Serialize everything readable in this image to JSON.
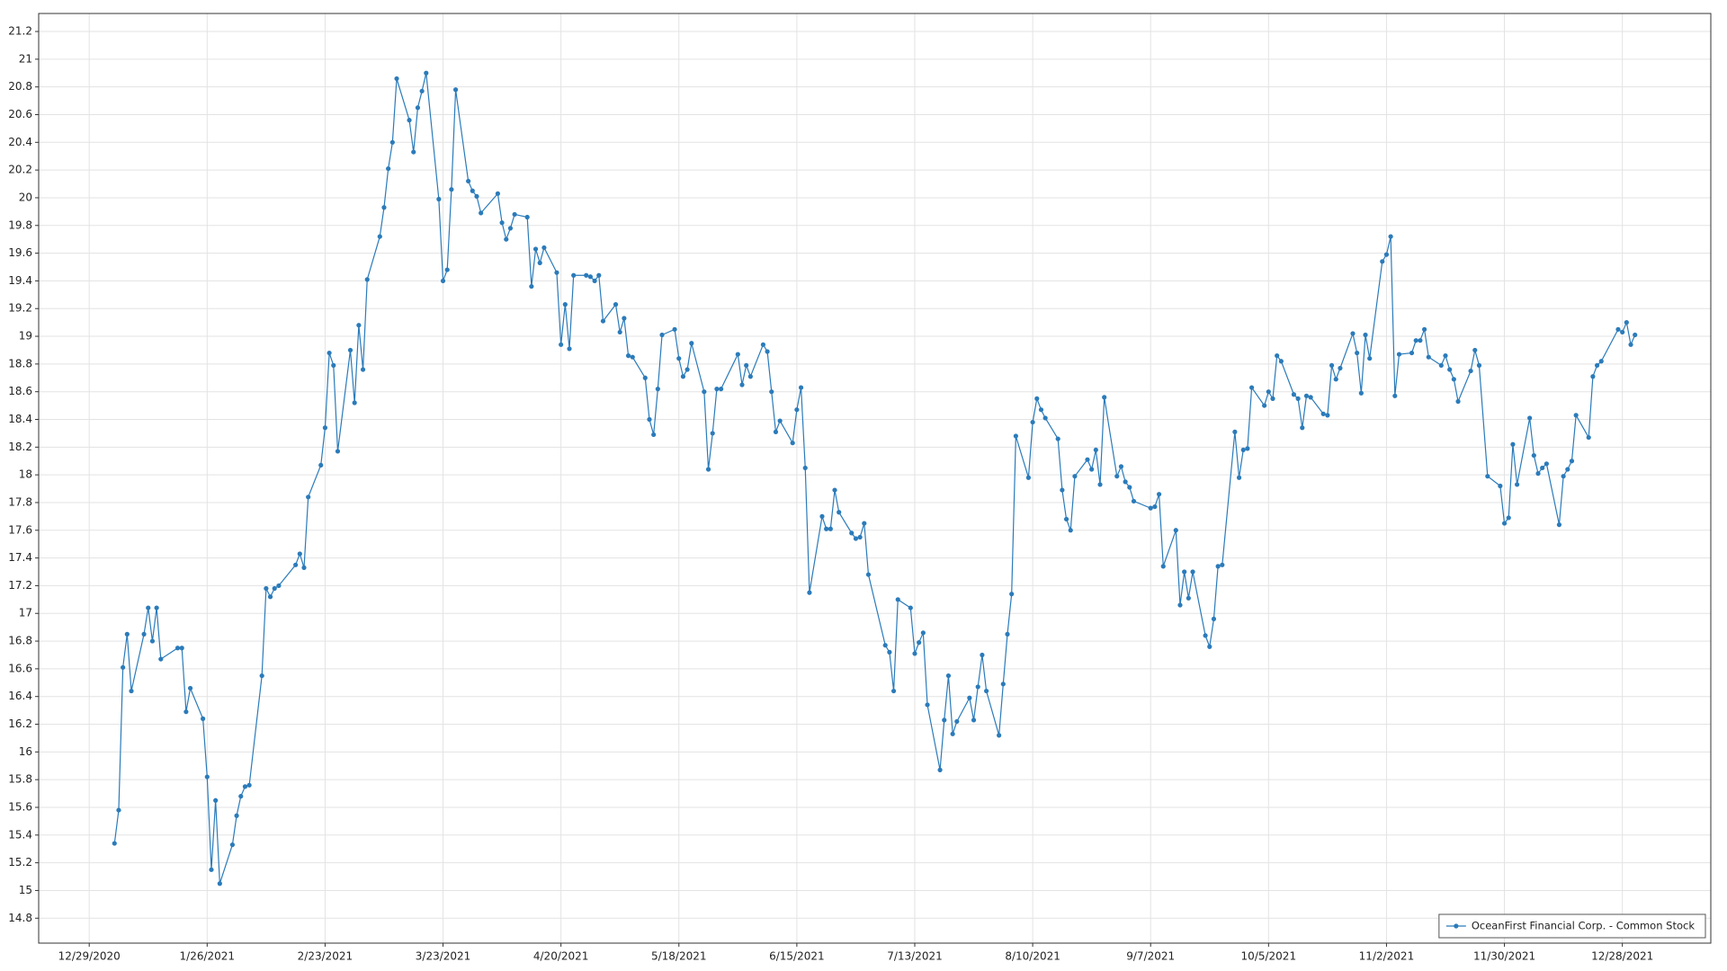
{
  "chart_data": {
    "type": "line",
    "x": [
      "2021-01-04",
      "2021-01-05",
      "2021-01-06",
      "2021-01-07",
      "2021-01-08",
      "2021-01-11",
      "2021-01-12",
      "2021-01-13",
      "2021-01-14",
      "2021-01-15",
      "2021-01-19",
      "2021-01-20",
      "2021-01-21",
      "2021-01-22",
      "2021-01-25",
      "2021-01-26",
      "2021-01-27",
      "2021-01-28",
      "2021-01-29",
      "2021-02-01",
      "2021-02-02",
      "2021-02-03",
      "2021-02-04",
      "2021-02-05",
      "2021-02-08",
      "2021-02-09",
      "2021-02-10",
      "2021-02-11",
      "2021-02-12",
      "2021-02-16",
      "2021-02-17",
      "2021-02-18",
      "2021-02-19",
      "2021-02-22",
      "2021-02-23",
      "2021-02-24",
      "2021-02-25",
      "2021-02-26",
      "2021-03-01",
      "2021-03-02",
      "2021-03-03",
      "2021-03-04",
      "2021-03-05",
      "2021-03-08",
      "2021-03-09",
      "2021-03-10",
      "2021-03-11",
      "2021-03-12",
      "2021-03-15",
      "2021-03-16",
      "2021-03-17",
      "2021-03-18",
      "2021-03-19",
      "2021-03-22",
      "2021-03-23",
      "2021-03-24",
      "2021-03-25",
      "2021-03-26",
      "2021-03-29",
      "2021-03-30",
      "2021-03-31",
      "2021-04-01",
      "2021-04-05",
      "2021-04-06",
      "2021-04-07",
      "2021-04-08",
      "2021-04-09",
      "2021-04-12",
      "2021-04-13",
      "2021-04-14",
      "2021-04-15",
      "2021-04-16",
      "2021-04-19",
      "2021-04-20",
      "2021-04-21",
      "2021-04-22",
      "2021-04-23",
      "2021-04-26",
      "2021-04-27",
      "2021-04-28",
      "2021-04-29",
      "2021-04-30",
      "2021-05-03",
      "2021-05-04",
      "2021-05-05",
      "2021-05-06",
      "2021-05-07",
      "2021-05-10",
      "2021-05-11",
      "2021-05-12",
      "2021-05-13",
      "2021-05-14",
      "2021-05-17",
      "2021-05-18",
      "2021-05-19",
      "2021-05-20",
      "2021-05-21",
      "2021-05-24",
      "2021-05-25",
      "2021-05-26",
      "2021-05-27",
      "2021-05-28",
      "2021-06-01",
      "2021-06-02",
      "2021-06-03",
      "2021-06-04",
      "2021-06-07",
      "2021-06-08",
      "2021-06-09",
      "2021-06-10",
      "2021-06-11",
      "2021-06-14",
      "2021-06-15",
      "2021-06-16",
      "2021-06-17",
      "2021-06-18",
      "2021-06-21",
      "2021-06-22",
      "2021-06-23",
      "2021-06-24",
      "2021-06-25",
      "2021-06-28",
      "2021-06-29",
      "2021-06-30",
      "2021-07-01",
      "2021-07-02",
      "2021-07-06",
      "2021-07-07",
      "2021-07-08",
      "2021-07-09",
      "2021-07-12",
      "2021-07-13",
      "2021-07-14",
      "2021-07-15",
      "2021-07-16",
      "2021-07-19",
      "2021-07-20",
      "2021-07-21",
      "2021-07-22",
      "2021-07-23",
      "2021-07-26",
      "2021-07-27",
      "2021-07-28",
      "2021-07-29",
      "2021-07-30",
      "2021-08-02",
      "2021-08-03",
      "2021-08-04",
      "2021-08-05",
      "2021-08-06",
      "2021-08-09",
      "2021-08-10",
      "2021-08-11",
      "2021-08-12",
      "2021-08-13",
      "2021-08-16",
      "2021-08-17",
      "2021-08-18",
      "2021-08-19",
      "2021-08-20",
      "2021-08-23",
      "2021-08-24",
      "2021-08-25",
      "2021-08-26",
      "2021-08-27",
      "2021-08-30",
      "2021-08-31",
      "2021-09-01",
      "2021-09-02",
      "2021-09-03",
      "2021-09-07",
      "2021-09-08",
      "2021-09-09",
      "2021-09-10",
      "2021-09-13",
      "2021-09-14",
      "2021-09-15",
      "2021-09-16",
      "2021-09-17",
      "2021-09-20",
      "2021-09-21",
      "2021-09-22",
      "2021-09-23",
      "2021-09-24",
      "2021-09-27",
      "2021-09-28",
      "2021-09-29",
      "2021-09-30",
      "2021-10-01",
      "2021-10-04",
      "2021-10-05",
      "2021-10-06",
      "2021-10-07",
      "2021-10-08",
      "2021-10-11",
      "2021-10-12",
      "2021-10-13",
      "2021-10-14",
      "2021-10-15",
      "2021-10-18",
      "2021-10-19",
      "2021-10-20",
      "2021-10-21",
      "2021-10-22",
      "2021-10-25",
      "2021-10-26",
      "2021-10-27",
      "2021-10-28",
      "2021-10-29",
      "2021-11-01",
      "2021-11-02",
      "2021-11-03",
      "2021-11-04",
      "2021-11-05",
      "2021-11-08",
      "2021-11-09",
      "2021-11-10",
      "2021-11-11",
      "2021-11-12",
      "2021-11-15",
      "2021-11-16",
      "2021-11-17",
      "2021-11-18",
      "2021-11-19",
      "2021-11-22",
      "2021-11-23",
      "2021-11-24",
      "2021-11-26",
      "2021-11-29",
      "2021-11-30",
      "2021-12-01",
      "2021-12-02",
      "2021-12-03",
      "2021-12-06",
      "2021-12-07",
      "2021-12-08",
      "2021-12-09",
      "2021-12-10",
      "2021-12-13",
      "2021-12-14",
      "2021-12-15",
      "2021-12-16",
      "2021-12-17",
      "2021-12-20",
      "2021-12-21",
      "2021-12-22",
      "2021-12-23",
      "2021-12-27",
      "2021-12-28",
      "2021-12-29",
      "2021-12-30",
      "2021-12-31"
    ],
    "series": [
      {
        "name": "OceanFirst Financial Corp. - Common Stock",
        "color": "#2b7bba",
        "values": [
          15.34,
          15.58,
          16.61,
          16.85,
          16.44,
          16.85,
          17.04,
          16.8,
          17.04,
          16.67,
          16.75,
          16.75,
          16.29,
          16.46,
          16.24,
          15.82,
          15.15,
          15.65,
          15.05,
          15.33,
          15.54,
          15.68,
          15.75,
          15.76,
          16.55,
          17.18,
          17.12,
          17.18,
          17.2,
          17.35,
          17.43,
          17.33,
          17.84,
          18.07,
          18.34,
          18.88,
          18.79,
          18.17,
          18.9,
          18.52,
          19.08,
          18.76,
          19.41,
          19.72,
          19.93,
          20.21,
          20.4,
          20.86,
          20.56,
          20.33,
          20.65,
          20.77,
          20.9,
          19.99,
          19.4,
          19.48,
          20.06,
          20.78,
          20.12,
          20.05,
          20.01,
          19.89,
          20.03,
          19.82,
          19.7,
          19.78,
          19.88,
          19.86,
          19.36,
          19.63,
          19.53,
          19.64,
          19.46,
          18.94,
          19.23,
          18.91,
          19.44,
          19.44,
          19.43,
          19.4,
          19.44,
          19.11,
          19.23,
          19.03,
          19.13,
          18.86,
          18.85,
          18.7,
          18.4,
          18.29,
          18.62,
          19.01,
          19.05,
          18.84,
          18.71,
          18.76,
          18.95,
          18.6,
          18.04,
          18.3,
          18.62,
          18.62,
          18.87,
          18.65,
          18.79,
          18.71,
          18.94,
          18.89,
          18.6,
          18.31,
          18.39,
          18.23,
          18.47,
          18.63,
          18.05,
          17.15,
          17.7,
          17.61,
          17.61,
          17.89,
          17.73,
          17.58,
          17.54,
          17.55,
          17.65,
          17.28,
          16.77,
          16.72,
          16.44,
          17.1,
          17.04,
          16.71,
          16.79,
          16.86,
          16.34,
          15.87,
          16.23,
          16.55,
          16.13,
          16.22,
          16.39,
          16.23,
          16.47,
          16.7,
          16.44,
          16.12,
          16.49,
          16.85,
          17.14,
          18.28,
          17.98,
          18.38,
          18.55,
          18.47,
          18.41,
          18.26,
          17.89,
          17.68,
          17.6,
          17.99,
          18.11,
          18.04,
          18.18,
          17.93,
          18.56,
          17.99,
          18.06,
          17.95,
          17.91,
          17.81,
          17.76,
          17.77,
          17.86,
          17.34,
          17.6,
          17.06,
          17.3,
          17.11,
          17.3,
          16.84,
          16.76,
          16.96,
          17.34,
          17.35,
          18.31,
          17.98,
          18.18,
          18.19,
          18.63,
          18.5,
          18.6,
          18.55,
          18.86,
          18.82,
          18.58,
          18.55,
          18.34,
          18.57,
          18.56,
          18.44,
          18.43,
          18.79,
          18.69,
          18.77,
          19.02,
          18.88,
          18.59,
          19.01,
          18.84,
          19.54,
          19.59,
          19.72,
          18.57,
          18.87,
          18.88,
          18.97,
          18.97,
          19.05,
          18.85,
          18.79,
          18.86,
          18.76,
          18.69,
          18.53,
          18.75,
          18.9,
          18.79,
          17.99,
          17.92,
          17.65,
          17.69,
          18.22,
          17.93,
          18.41,
          18.14,
          18.01,
          18.05,
          18.08,
          17.64,
          17.99,
          18.04,
          18.1,
          18.43,
          18.27,
          18.71,
          18.79,
          18.82,
          19.05,
          19.03,
          19.1,
          18.94,
          19.01
        ]
      }
    ],
    "xlim": [
      "2020-12-17",
      "2022-01-18"
    ],
    "xticks": [
      {
        "value": "2020-12-29",
        "label": "12/29/2020"
      },
      {
        "value": "2021-01-26",
        "label": "1/26/2021"
      },
      {
        "value": "2021-02-23",
        "label": "2/23/2021"
      },
      {
        "value": "2021-03-23",
        "label": "3/23/2021"
      },
      {
        "value": "2021-04-20",
        "label": "4/20/2021"
      },
      {
        "value": "2021-05-18",
        "label": "5/18/2021"
      },
      {
        "value": "2021-06-15",
        "label": "6/15/2021"
      },
      {
        "value": "2021-07-13",
        "label": "7/13/2021"
      },
      {
        "value": "2021-08-10",
        "label": "8/10/2021"
      },
      {
        "value": "2021-09-07",
        "label": "9/7/2021"
      },
      {
        "value": "2021-10-05",
        "label": "10/5/2021"
      },
      {
        "value": "2021-11-02",
        "label": "11/2/2021"
      },
      {
        "value": "2021-11-30",
        "label": "11/30/2021"
      },
      {
        "value": "2021-12-28",
        "label": "12/28/2021"
      }
    ],
    "ylim": [
      14.62,
      21.33
    ],
    "yticks": [
      14.8,
      15,
      15.2,
      15.4,
      15.6,
      15.8,
      16,
      16.2,
      16.4,
      16.6,
      16.8,
      17,
      17.2,
      17.4,
      17.6,
      17.8,
      18,
      18.2,
      18.4,
      18.6,
      18.8,
      19,
      19.2,
      19.4,
      19.6,
      19.8,
      20,
      20.2,
      20.4,
      20.6,
      20.8,
      21,
      21.2
    ],
    "grid": true,
    "legend": "bottom-right"
  }
}
